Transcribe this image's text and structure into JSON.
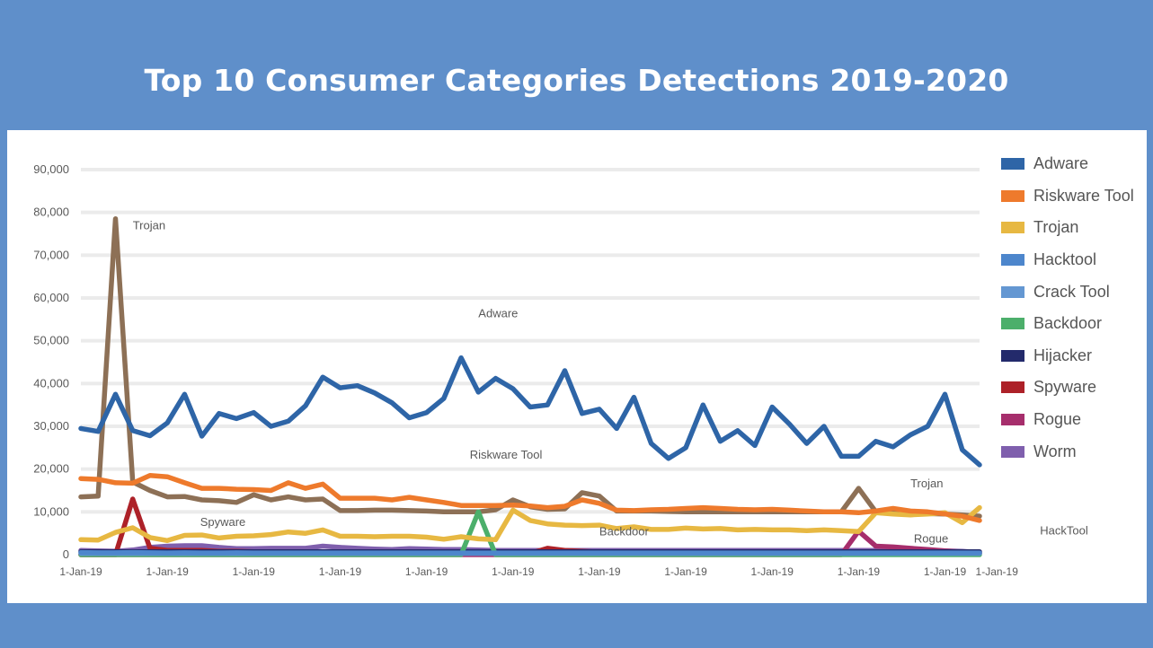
{
  "title": "Top 10 Consumer Categories Detections 2019-2020",
  "colors": {
    "background": "#5f8fca",
    "panel": "#ffffff",
    "grid": "#ebebeb"
  },
  "chart_data": {
    "type": "line",
    "title": "Top 10 Consumer Categories Detections 2019-2020",
    "xlabel": "",
    "ylabel": "",
    "ylim": [
      0,
      90000
    ],
    "yticks": [
      "0",
      "10,000",
      "20,000",
      "30,000",
      "40,000",
      "50,000",
      "60,000",
      "70,000",
      "80,000",
      "90,000"
    ],
    "grid": true,
    "legend_position": "right",
    "x_tick_labels": [
      "1-Jan-19",
      "1-Jan-19",
      "1-Jan-19",
      "1-Jan-19",
      "1-Jan-19",
      "1-Jan-19",
      "1-Jan-19",
      "1-Jan-19",
      "1-Jan-19",
      "1-Jan-19",
      "1-Jan-19",
      "1-Jan-19"
    ],
    "x_tick_positions": [
      0,
      5,
      10,
      15,
      20,
      25,
      30,
      35,
      40,
      45,
      50,
      53
    ],
    "series": [
      {
        "name": "Adware",
        "color": "#2e65a7",
        "values": [
          29500,
          28800,
          37500,
          29000,
          27800,
          30800,
          37500,
          27700,
          33000,
          31800,
          33200,
          30000,
          31200,
          34800,
          41500,
          39000,
          39500,
          37800,
          35500,
          32000,
          33200,
          36500,
          46000,
          38000,
          41200,
          38800,
          34500,
          35000,
          43000,
          33000,
          34000,
          29500,
          36800,
          26000,
          22500,
          25000,
          35000,
          26500,
          29000,
          25500,
          34500,
          30500,
          26000,
          30000,
          23000,
          23000,
          26500,
          25200,
          28000,
          30000,
          37500,
          24500,
          21000
        ]
      },
      {
        "name": "Riskware Tool",
        "color": "#ee7a2c",
        "values": [
          17800,
          17600,
          16800,
          16700,
          18500,
          18200,
          16800,
          15500,
          15500,
          15300,
          15200,
          15000,
          16800,
          15500,
          16500,
          13200,
          13200,
          13200,
          12800,
          13400,
          12800,
          12200,
          11500,
          11500,
          11500,
          11600,
          11400,
          11000,
          11300,
          12800,
          12000,
          10400,
          10300,
          10500,
          10600,
          10800,
          11000,
          10800,
          10600,
          10500,
          10600,
          10400,
          10200,
          10000,
          10000,
          9800,
          10200,
          10800,
          10200,
          10000,
          9500,
          9000,
          8000
        ]
      },
      {
        "name": "Trojan",
        "color": "#e7b842",
        "values": [
          3500,
          3400,
          5200,
          6300,
          4000,
          3300,
          4500,
          4600,
          3900,
          4300,
          4400,
          4700,
          5300,
          5000,
          5800,
          4300,
          4300,
          4200,
          4300,
          4300,
          4100,
          3600,
          4200,
          3700,
          3500,
          10400,
          8000,
          7200,
          6900,
          6800,
          6900,
          6100,
          6500,
          5900,
          5900,
          6200,
          6000,
          6100,
          5800,
          5900,
          5800,
          5800,
          5600,
          5800,
          5600,
          5400,
          9800,
          9500,
          9300,
          9500,
          9800,
          7500,
          11000
        ]
      },
      {
        "name": "Hacktool",
        "color": "#4d86cc",
        "values": [
          500,
          450,
          450,
          500,
          450,
          400,
          450,
          400,
          400,
          450,
          400,
          400,
          400,
          400,
          400,
          400,
          400,
          400,
          400,
          400,
          400,
          400,
          400,
          400,
          400,
          400,
          400,
          400,
          400,
          400,
          400,
          400,
          400,
          400,
          400,
          400,
          400,
          400,
          400,
          400,
          400,
          400,
          400,
          400,
          400,
          400,
          400,
          400,
          400,
          400,
          400,
          400,
          400
        ]
      },
      {
        "name": "Crack Tool",
        "color": "#6497d2",
        "values": [
          300,
          300,
          300,
          300,
          300,
          300,
          300,
          300,
          300,
          300,
          300,
          300,
          300,
          300,
          300,
          300,
          300,
          300,
          300,
          300,
          300,
          300,
          300,
          300,
          300,
          300,
          300,
          300,
          300,
          300,
          300,
          300,
          300,
          300,
          300,
          300,
          300,
          300,
          300,
          300,
          300,
          300,
          300,
          300,
          300,
          300,
          300,
          300,
          300,
          300,
          300,
          300,
          300
        ]
      },
      {
        "name": "Backdoor",
        "color": "#4caf6b",
        "values": [
          0,
          0,
          0,
          0,
          0,
          0,
          0,
          0,
          0,
          0,
          0,
          0,
          0,
          0,
          0,
          0,
          0,
          0,
          0,
          0,
          0,
          0,
          0,
          10000,
          0,
          0,
          0,
          0,
          0,
          0,
          0,
          0,
          0,
          0,
          0,
          0,
          0,
          0,
          0,
          0,
          0,
          0,
          0,
          0,
          0,
          0,
          0,
          0,
          0,
          0,
          0,
          0,
          0
        ]
      },
      {
        "name": "Hijacker",
        "color": "#232a6b",
        "values": [
          700,
          700,
          700,
          700,
          700,
          700,
          700,
          700,
          700,
          700,
          700,
          700,
          700,
          700,
          700,
          700,
          700,
          700,
          700,
          700,
          700,
          700,
          700,
          700,
          700,
          700,
          700,
          700,
          700,
          700,
          700,
          700,
          700,
          700,
          700,
          700,
          700,
          700,
          700,
          700,
          700,
          700,
          700,
          700,
          700,
          700,
          700,
          700,
          700,
          700,
          700,
          700,
          700
        ]
      },
      {
        "name": "Spyware",
        "color": "#ad2128",
        "values": [
          0,
          0,
          0,
          13000,
          1500,
          1000,
          1000,
          1000,
          800,
          800,
          700,
          700,
          600,
          600,
          600,
          500,
          500,
          500,
          500,
          300,
          300,
          300,
          300,
          300,
          300,
          300,
          300,
          1500,
          1000,
          800,
          600,
          500,
          500,
          500,
          500,
          500,
          500,
          500,
          500,
          500,
          500,
          500,
          500,
          500,
          400,
          400,
          400,
          400,
          400,
          400,
          400,
          400,
          400
        ]
      },
      {
        "name": "Rogue",
        "color": "#a62e6c",
        "values": [
          0,
          0,
          0,
          0,
          0,
          0,
          0,
          0,
          0,
          0,
          0,
          0,
          0,
          0,
          0,
          0,
          0,
          0,
          0,
          0,
          0,
          0,
          0,
          0,
          0,
          0,
          0,
          0,
          0,
          0,
          0,
          0,
          0,
          0,
          0,
          0,
          0,
          0,
          0,
          0,
          0,
          0,
          0,
          0,
          0,
          5500,
          2000,
          1800,
          1500,
          1200,
          900,
          600,
          300
        ]
      },
      {
        "name": "Worm",
        "color": "#7f5fad",
        "values": [
          1000,
          900,
          800,
          1100,
          1700,
          2000,
          2100,
          2100,
          1700,
          1400,
          1400,
          1500,
          1500,
          1500,
          2000,
          1700,
          1500,
          1300,
          1200,
          1400,
          1300,
          1200,
          1200,
          1100,
          1000,
          1000,
          1000,
          1000,
          1000,
          1000,
          1000,
          1000,
          1000,
          1000,
          1000,
          1000,
          1000,
          1000,
          1000,
          1000,
          1000,
          1000,
          1000,
          1000,
          1000,
          1000,
          1000,
          1000,
          1000,
          1000,
          900,
          800,
          500
        ]
      },
      {
        "name": "Trojan (prior period)",
        "color": "#8d7056",
        "legend": false,
        "values": [
          13500,
          13700,
          78500,
          17000,
          15000,
          13500,
          13600,
          12800,
          12600,
          12200,
          14000,
          12800,
          13500,
          12800,
          13000,
          10300,
          10300,
          10400,
          10400,
          10300,
          10200,
          10000,
          10000,
          10000,
          10500,
          12800,
          11200,
          10600,
          10700,
          14500,
          13700,
          10200,
          10200,
          10200,
          10100,
          10000,
          10000,
          10000,
          10000,
          10000,
          10000,
          10000,
          10000,
          10000,
          10000,
          15500,
          10000,
          9800,
          9700,
          9600,
          9500,
          9300,
          9000
        ]
      }
    ],
    "annotations": [
      {
        "text": "Trojan",
        "x": 3,
        "y": 76000
      },
      {
        "text": "Adware",
        "x": 23,
        "y": 55500
      },
      {
        "text": "Riskware Tool",
        "x": 22.5,
        "y": 22500
      },
      {
        "text": "Spyware",
        "x": 6.9,
        "y": 6700
      },
      {
        "text": "Backdoor",
        "x": 30,
        "y": 4500
      },
      {
        "text": "Trojan",
        "x": 48,
        "y": 15700
      },
      {
        "text": "Rogue",
        "x": 48.2,
        "y": 2800
      },
      {
        "text": "HackTool",
        "x": 55.5,
        "y": 4700
      }
    ]
  }
}
